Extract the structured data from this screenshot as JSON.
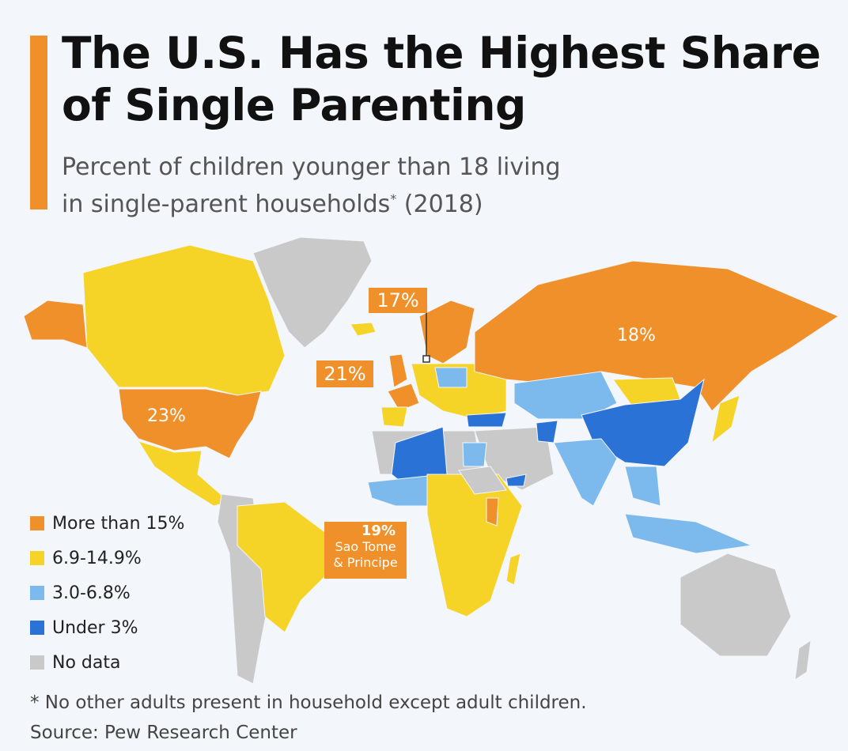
{
  "header": {
    "title_line1": "The U.S. Has the Highest Share",
    "title_line2": "of Single Parenting",
    "subtitle_line1": "Percent of children younger than 18 living",
    "subtitle_line2": "in single-parent households",
    "subtitle_asterisk": "*",
    "subtitle_year": " (2018)"
  },
  "colors": {
    "accent": "#f0902a",
    "more_than_15": "#f0902a",
    "6_9_to_14_9": "#f5d327",
    "3_0_to_6_8": "#7cb9ec",
    "under_3": "#2a72d6",
    "no_data": "#c9c9c9",
    "background": "#f3f6fa"
  },
  "legend": [
    {
      "label": "More than 15%",
      "color": "#f0902a"
    },
    {
      "label": "6.9-14.9%",
      "color": "#f5d327"
    },
    {
      "label": "3.0-6.8%",
      "color": "#7cb9ec"
    },
    {
      "label": "Under 3%",
      "color": "#2a72d6"
    },
    {
      "label": "No data",
      "color": "#c9c9c9"
    }
  ],
  "callouts": {
    "us": "23%",
    "russia": "18%",
    "denmark": "17%",
    "france_uk": "21%",
    "sao_tome_value": "19%",
    "sao_tome_name_line1": "Sao Tome",
    "sao_tome_name_line2": "& Principe"
  },
  "footer": {
    "note": "* No other adults present in household except adult children.",
    "source": "Source: Pew Research Center"
  }
}
